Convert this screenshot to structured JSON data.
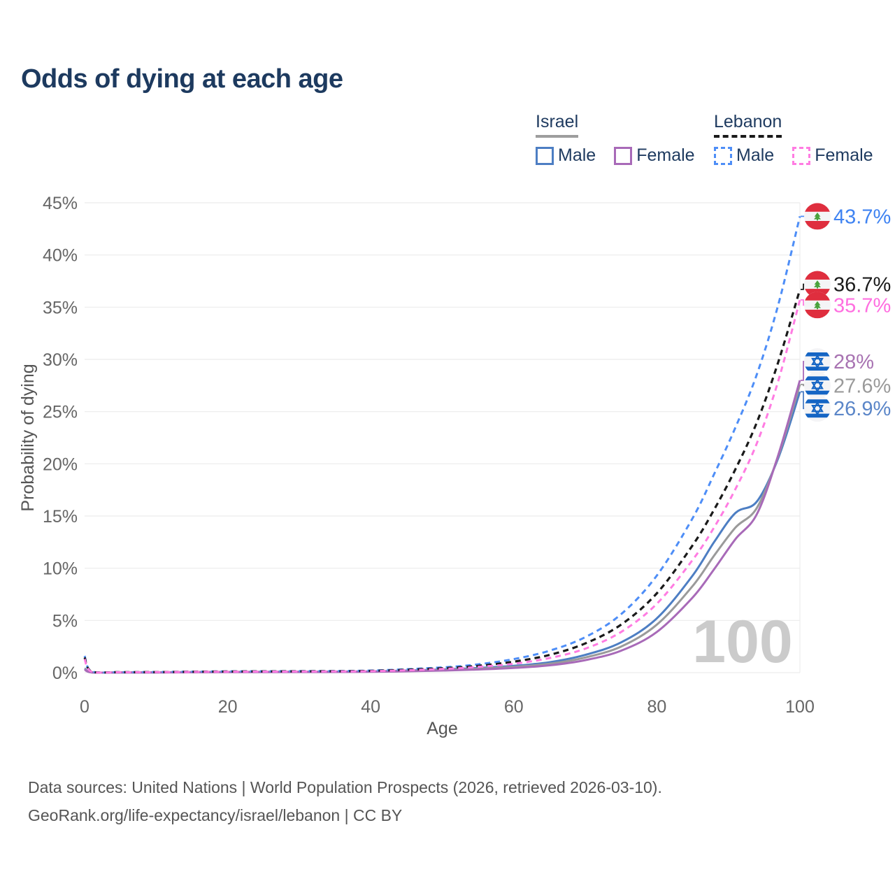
{
  "title": "Odds of dying at each age",
  "watermark": "100",
  "legend": {
    "groups": [
      {
        "label": "Israel",
        "underline": {
          "style": "solid",
          "color": "#9e9e9e"
        },
        "items": [
          {
            "label": "Male",
            "color": "#4d7ec3",
            "dashed": false
          },
          {
            "label": "Female",
            "color": "#a86ab8",
            "dashed": false
          }
        ]
      },
      {
        "label": "Lebanon",
        "underline": {
          "style": "dashed",
          "color": "#1a1a1a"
        },
        "items": [
          {
            "label": "Male",
            "color": "#4e8ef7",
            "dashed": true
          },
          {
            "label": "Female",
            "color": "#ff7ce2",
            "dashed": true
          }
        ]
      }
    ]
  },
  "footer": {
    "line1": "Data sources: United Nations | World Population Prospects (2026, retrieved 2026-03-10).",
    "line2": "GeoRank.org/life-expectancy/israel/lebanon | CC BY"
  },
  "chart_data": {
    "type": "line",
    "title": "Odds of dying at each age",
    "xlabel": "Age",
    "ylabel": "Probability of dying",
    "xlim": [
      0,
      100
    ],
    "ylim": [
      0,
      45
    ],
    "x_ticks": [
      0,
      20,
      40,
      60,
      80,
      100
    ],
    "y_ticks": [
      "0%",
      "5%",
      "10%",
      "15%",
      "20%",
      "25%",
      "30%",
      "35%",
      "40%",
      "45%"
    ],
    "grid": "horizontal",
    "legend_position": "top-right",
    "ages": [
      0,
      1,
      5,
      10,
      20,
      30,
      40,
      50,
      55,
      60,
      65,
      70,
      75,
      80,
      85,
      88,
      91,
      94,
      97,
      100
    ],
    "series": [
      {
        "name": "Israel male",
        "country": "Israel",
        "sex": "Male",
        "color": "#4d7ec3",
        "dash": null,
        "width": 3,
        "values": [
          0.4,
          0.03,
          0.02,
          0.03,
          0.07,
          0.09,
          0.12,
          0.3,
          0.45,
          0.65,
          1.0,
          1.7,
          2.9,
          5.2,
          9.3,
          12.5,
          15.3,
          16.4,
          20.6,
          26.9
        ],
        "end_label": "26.9%",
        "end_value": 26.9,
        "label_color": "#5b86c8",
        "flag": "israel",
        "label_pos": 25.3
      },
      {
        "name": "Israel",
        "country": "Israel",
        "sex": "Both",
        "color": "#9a9a9a",
        "dash": null,
        "width": 3,
        "values": [
          0.35,
          0.025,
          0.018,
          0.025,
          0.06,
          0.08,
          0.1,
          0.25,
          0.38,
          0.55,
          0.85,
          1.45,
          2.5,
          4.6,
          8.3,
          11.2,
          13.9,
          15.8,
          20.8,
          27.6
        ],
        "end_label": "27.6%",
        "end_value": 27.6,
        "label_color": "#9a9a9a",
        "flag": "israel",
        "label_pos": 27.5
      },
      {
        "name": "Israel female",
        "country": "Israel",
        "sex": "Female",
        "color": "#a86ab8",
        "dash": null,
        "width": 3,
        "values": [
          0.3,
          0.02,
          0.015,
          0.02,
          0.05,
          0.06,
          0.08,
          0.2,
          0.3,
          0.45,
          0.7,
          1.2,
          2.1,
          3.9,
          7.2,
          9.9,
          12.8,
          15.2,
          20.9,
          28.0
        ],
        "end_label": "28%",
        "end_value": 28.0,
        "label_color": "#a873b2",
        "flag": "israel",
        "label_pos": 29.8
      },
      {
        "name": "Lebanon male",
        "country": "Lebanon",
        "sex": "Male",
        "color": "#4e8ef7",
        "dash": "8 6",
        "width": 3,
        "values": [
          1.6,
          0.1,
          0.05,
          0.06,
          0.12,
          0.15,
          0.2,
          0.5,
          0.8,
          1.3,
          2.1,
          3.4,
          5.6,
          9.3,
          14.8,
          19.0,
          23.5,
          28.6,
          35.3,
          43.7
        ],
        "end_label": "43.7%",
        "end_value": 43.7,
        "label_color": "#3f83f2",
        "flag": "lebanon",
        "label_pos": 43.7
      },
      {
        "name": "Lebanon",
        "country": "Lebanon",
        "sex": "Both",
        "color": "#1a1a1a",
        "dash": "8 6",
        "width": 3.2,
        "values": [
          1.45,
          0.09,
          0.045,
          0.055,
          0.11,
          0.13,
          0.17,
          0.42,
          0.65,
          1.05,
          1.7,
          2.8,
          4.6,
          7.6,
          12.2,
          15.6,
          19.5,
          24.0,
          29.8,
          36.7
        ],
        "end_label": "36.7%",
        "end_value": 36.7,
        "label_color": "#1a1a1a",
        "flag": "lebanon",
        "label_pos": 37.2
      },
      {
        "name": "Lebanon female",
        "country": "Lebanon",
        "sex": "Female",
        "color": "#ff7ce2",
        "dash": "8 6",
        "width": 3,
        "values": [
          1.3,
          0.08,
          0.04,
          0.05,
          0.09,
          0.11,
          0.14,
          0.35,
          0.55,
          0.85,
          1.4,
          2.3,
          3.9,
          6.6,
          10.8,
          13.9,
          17.6,
          22.0,
          28.0,
          35.7
        ],
        "end_label": "35.7%",
        "end_value": 35.7,
        "label_color": "#ff6fe0",
        "flag": "lebanon",
        "label_pos": 35.2
      }
    ],
    "colors": {
      "grid": "#ececec",
      "tick_text": "#666666",
      "axis_label": "#555555",
      "title_text": "#1d3a5f",
      "watermark": "#cbcbcb",
      "israel_flag_blue": "#1565c4",
      "lebanon_flag_red": "#df2e3e",
      "lebanon_flag_green": "#4aa23c"
    }
  }
}
